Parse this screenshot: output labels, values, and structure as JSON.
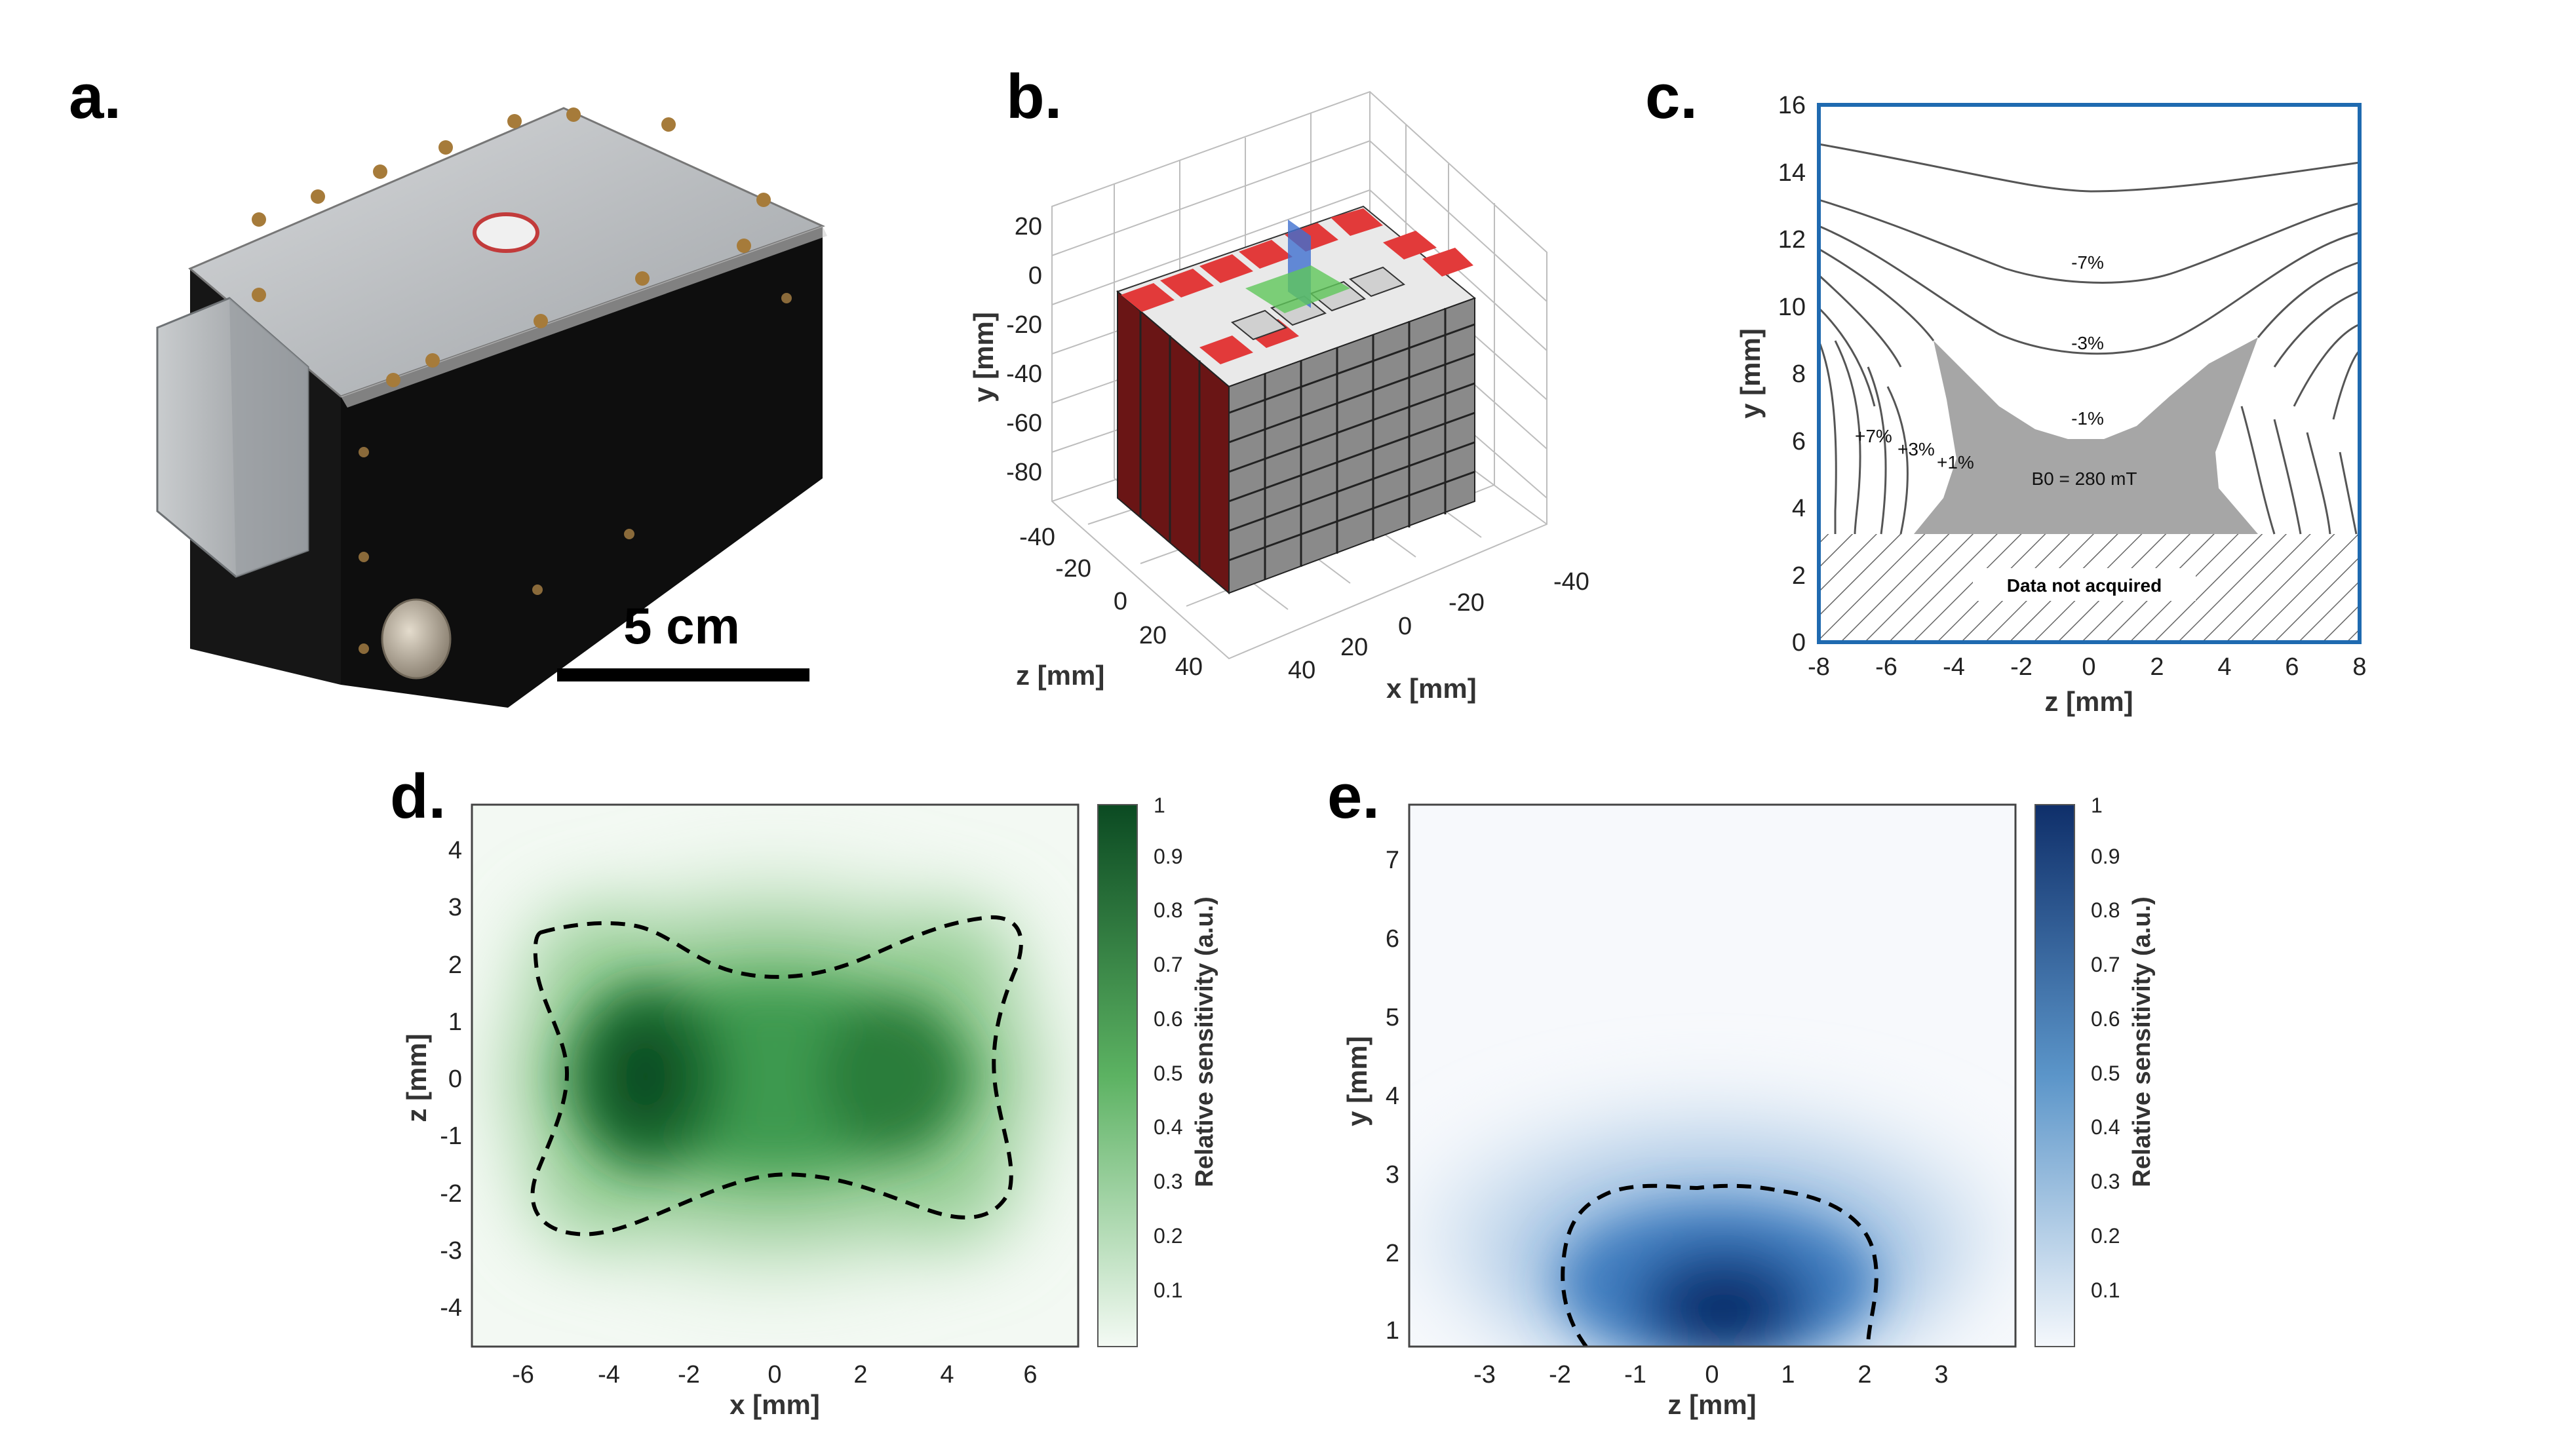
{
  "panel_labels": {
    "a": "a.",
    "b": "b.",
    "c": "c.",
    "d": "d.",
    "e": "e."
  },
  "panel_a": {
    "scale_bar_label": "5 cm"
  },
  "panel_b": {
    "y_ticks": [
      "20",
      "0",
      "-20",
      "-40",
      "-60",
      "-80"
    ],
    "z_ticks": [
      "-40",
      "-20",
      "0",
      "20",
      "40"
    ],
    "x_ticks": [
      "-40",
      "-20",
      "0",
      "20",
      "40"
    ],
    "y_label": "y [mm]",
    "z_label": "z [mm]",
    "x_label": "x [mm]"
  },
  "panel_c": {
    "x_ticks": [
      "-8",
      "-6",
      "-4",
      "-2",
      "0",
      "2",
      "4",
      "6",
      "8"
    ],
    "y_ticks": [
      "0",
      "2",
      "4",
      "6",
      "8",
      "10",
      "12",
      "14",
      "16"
    ],
    "x_label": "z [mm]",
    "y_label": "y [mm]",
    "contour_labels": [
      "-7%",
      "-3%",
      "-1%",
      "+7%",
      "+3%",
      "+1%"
    ],
    "field_label": "B0 = 280 mT",
    "hatch_label": "Data not acquired",
    "frame_color": "#1f6ab0",
    "homogeneous_fill": "#a6a6a6"
  },
  "panel_d": {
    "x_ticks": [
      "-6",
      "-4",
      "-2",
      "0",
      "2",
      "4",
      "6"
    ],
    "y_ticks": [
      "4",
      "3",
      "2",
      "1",
      "0",
      "-1",
      "-2",
      "-3",
      "-4"
    ],
    "x_label": "x [mm]",
    "y_label": "z [mm]",
    "colorbar_ticks": [
      "1",
      "0.9",
      "0.8",
      "0.7",
      "0.6",
      "0.5",
      "0.4",
      "0.3",
      "0.2",
      "0.1"
    ],
    "colorbar_label": "Relative sensitivity (a.u.)",
    "max_color": "#0b4a22"
  },
  "panel_e": {
    "x_ticks": [
      "-3",
      "-2",
      "-1",
      "0",
      "1",
      "2",
      "3"
    ],
    "y_ticks": [
      "7",
      "6",
      "5",
      "4",
      "3",
      "2",
      "1"
    ],
    "x_label": "z [mm]",
    "y_label": "y [mm]",
    "colorbar_ticks": [
      "1",
      "0.9",
      "0.8",
      "0.7",
      "0.6",
      "0.5",
      "0.4",
      "0.3",
      "0.2",
      "0.1"
    ],
    "colorbar_label": "Relative sensitivity (a.u.)",
    "max_color": "#0f2f6a"
  }
}
